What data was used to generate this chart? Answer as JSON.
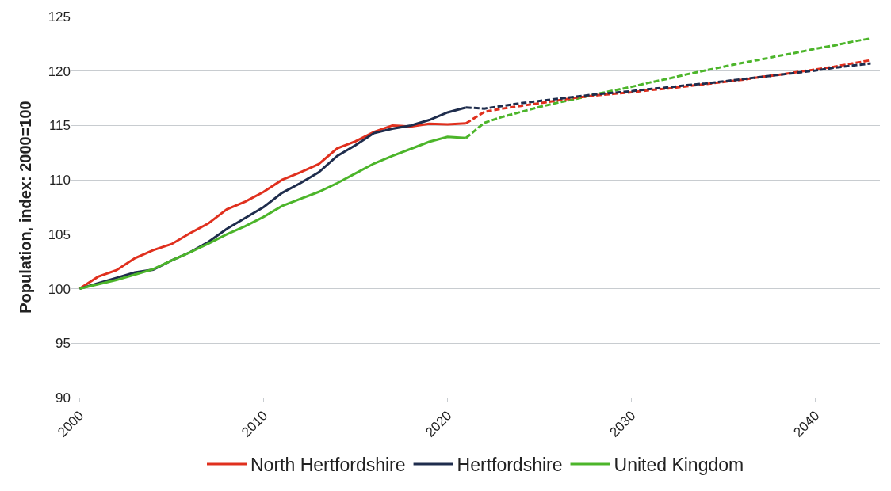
{
  "chart_data": {
    "type": "line",
    "ylabel": "Population, index: 2000=100",
    "xlim": [
      1999.55,
      2043.5
    ],
    "xticks": [
      2000,
      2010,
      2020,
      2030,
      2040
    ],
    "ylim": [
      90,
      125
    ],
    "yticks": [
      90,
      95,
      100,
      105,
      110,
      115,
      120,
      125
    ],
    "grid": "y",
    "legend": "bottom",
    "marker": "none",
    "series": [
      {
        "name": "North Hertfordshire",
        "color": "#e0301e",
        "line_style": "solid",
        "x": [
          2000,
          2001,
          2002,
          2003,
          2004,
          2005,
          2006,
          2007,
          2008,
          2009,
          2010,
          2011,
          2012,
          2013,
          2014,
          2015,
          2016,
          2017,
          2018,
          2019,
          2020,
          2021
        ],
        "values": [
          100,
          101.1,
          101.7,
          102.8,
          103.55,
          104.1,
          105.1,
          106.0,
          107.3,
          108.0,
          108.9,
          110.0,
          110.7,
          111.45,
          112.9,
          113.55,
          114.4,
          115.0,
          114.9,
          115.15,
          115.1,
          115.2
        ]
      },
      {
        "name": "Hertfordshire",
        "color": "#1f2d4d",
        "line_style": "solid",
        "x": [
          2000,
          2001,
          2002,
          2003,
          2004,
          2005,
          2006,
          2007,
          2008,
          2009,
          2010,
          2011,
          2012,
          2013,
          2014,
          2015,
          2016,
          2017,
          2018,
          2019,
          2020,
          2021
        ],
        "values": [
          100,
          100.5,
          101.0,
          101.5,
          101.75,
          102.6,
          103.35,
          104.3,
          105.5,
          106.5,
          107.5,
          108.8,
          109.7,
          110.7,
          112.2,
          113.2,
          114.3,
          114.7,
          115.0,
          115.5,
          116.2,
          116.65
        ]
      },
      {
        "name": "United Kingdom",
        "color": "#4cb52a",
        "line_style": "solid",
        "x": [
          2000,
          2001,
          2002,
          2003,
          2004,
          2005,
          2006,
          2007,
          2008,
          2009,
          2010,
          2011,
          2012,
          2013,
          2014,
          2015,
          2016,
          2017,
          2018,
          2019,
          2020,
          2021
        ],
        "values": [
          100,
          100.4,
          100.8,
          101.3,
          101.8,
          102.6,
          103.35,
          104.15,
          105.0,
          105.75,
          106.6,
          107.6,
          108.25,
          108.9,
          109.7,
          110.6,
          111.5,
          112.2,
          112.85,
          113.5,
          113.95,
          113.85
        ]
      },
      {
        "color": "#4cb52a",
        "line_style": "dashed",
        "x": [
          2021,
          2022,
          2023,
          2024,
          2025,
          2026,
          2027,
          2028,
          2029,
          2030,
          2031,
          2032,
          2033,
          2034,
          2035,
          2036,
          2037,
          2038,
          2039,
          2040,
          2041,
          2042,
          2043
        ],
        "values": [
          113.85,
          115.25,
          115.8,
          116.25,
          116.7,
          117.1,
          117.45,
          117.85,
          118.2,
          118.55,
          118.95,
          119.3,
          119.7,
          120.05,
          120.4,
          120.75,
          121.05,
          121.4,
          121.7,
          122.05,
          122.35,
          122.7,
          123.0
        ]
      },
      {
        "color": "#e0301e",
        "line_style": "dashed",
        "x": [
          2021,
          2022,
          2023,
          2024,
          2025,
          2026,
          2027,
          2028,
          2029,
          2030,
          2031,
          2032,
          2033,
          2034,
          2035,
          2036,
          2037,
          2038,
          2039,
          2040,
          2041,
          2042,
          2043
        ],
        "values": [
          115.2,
          116.25,
          116.55,
          116.8,
          117.05,
          117.3,
          117.55,
          117.75,
          117.9,
          118.05,
          118.25,
          118.4,
          118.6,
          118.8,
          119.0,
          119.2,
          119.45,
          119.65,
          119.9,
          120.15,
          120.4,
          120.7,
          121.0
        ]
      },
      {
        "color": "#1f2d4d",
        "line_style": "dashed",
        "x": [
          2021,
          2022,
          2023,
          2024,
          2025,
          2026,
          2027,
          2028,
          2029,
          2030,
          2031,
          2032,
          2033,
          2034,
          2035,
          2036,
          2037,
          2038,
          2039,
          2040,
          2041,
          2042,
          2043
        ],
        "values": [
          116.65,
          116.55,
          116.8,
          117.05,
          117.25,
          117.45,
          117.65,
          117.85,
          118.0,
          118.15,
          118.35,
          118.5,
          118.7,
          118.85,
          119.05,
          119.25,
          119.45,
          119.65,
          119.85,
          120.05,
          120.3,
          120.5,
          120.7
        ]
      }
    ]
  }
}
